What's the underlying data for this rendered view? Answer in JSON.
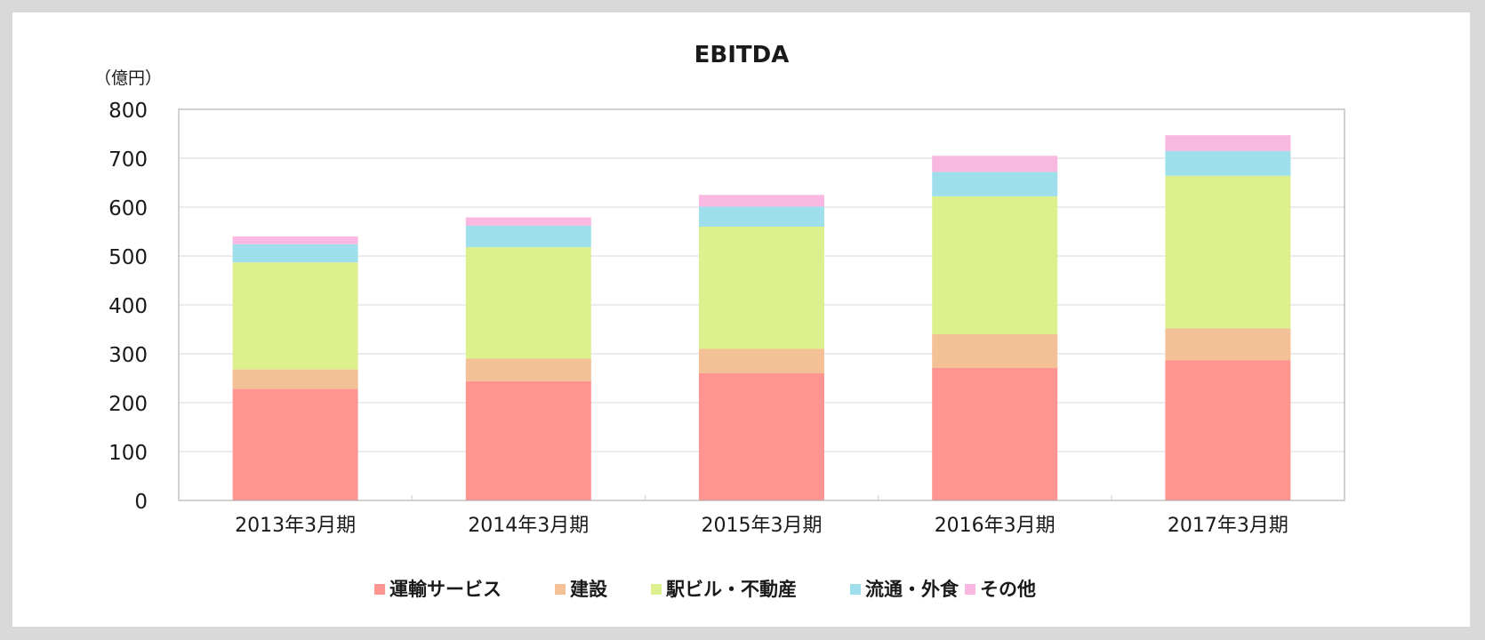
{
  "chart_data": {
    "type": "bar",
    "stacked": true,
    "title": "EBITDA",
    "unit_label": "（億円）",
    "categories": [
      "2013年3月期",
      "2014年3月期",
      "2015年3月期",
      "2016年3月期",
      "2017年3月期"
    ],
    "ylim": [
      0,
      800
    ],
    "yticks": [
      "0",
      "100",
      "200",
      "300",
      "400",
      "500",
      "600",
      "700",
      "800"
    ],
    "grid": true,
    "legend_position": "bottom",
    "series": [
      {
        "name": "運輸サービス",
        "color": "#ff9490",
        "values": [
          228,
          244,
          260,
          271,
          287
        ]
      },
      {
        "name": "建設",
        "color": "#f4c096",
        "values": [
          40,
          46,
          50,
          69,
          65
        ]
      },
      {
        "name": "駅ビル・不動産",
        "color": "#ddf08e",
        "values": [
          219,
          228,
          250,
          282,
          312
        ]
      },
      {
        "name": "流通・外食",
        "color": "#9fdfec",
        "values": [
          37,
          44,
          41,
          50,
          51
        ]
      },
      {
        "name": "その他",
        "color": "#f8b8e2",
        "values": [
          16,
          17,
          24,
          33,
          32
        ]
      }
    ]
  }
}
